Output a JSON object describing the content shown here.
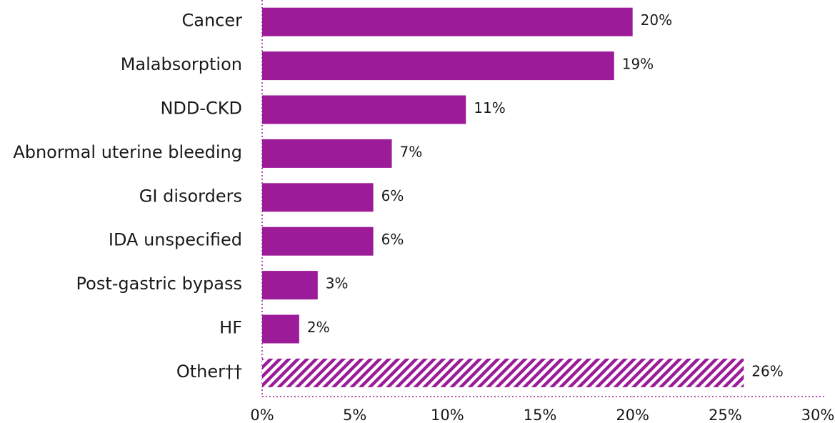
{
  "chart_data": {
    "type": "bar",
    "orientation": "horizontal",
    "categories": [
      "Cancer",
      "Malabsorption",
      "NDD-CKD",
      "Abnormal uterine bleeding",
      "GI disorders",
      "IDA unspecified",
      "Post-gastric bypass",
      "HF",
      "Other††"
    ],
    "values": [
      20,
      19,
      11,
      7,
      6,
      6,
      3,
      2,
      26
    ],
    "value_labels": [
      "20%",
      "19%",
      "11%",
      "7%",
      "6%",
      "6%",
      "3%",
      "2%",
      "26%"
    ],
    "hatched": [
      false,
      false,
      false,
      false,
      false,
      false,
      false,
      false,
      true
    ],
    "color": "#9b1b98",
    "xlim": [
      0,
      30
    ],
    "xticks": [
      {
        "value": 0,
        "label": "0%"
      },
      {
        "value": 5,
        "label": "5%"
      },
      {
        "value": 10,
        "label": "10%"
      },
      {
        "value": 15,
        "label": "15%"
      },
      {
        "value": 20,
        "label": "20%"
      },
      {
        "value": 25,
        "label": "25%"
      },
      {
        "value": 30,
        "label": "30%"
      }
    ],
    "grid": false
  }
}
